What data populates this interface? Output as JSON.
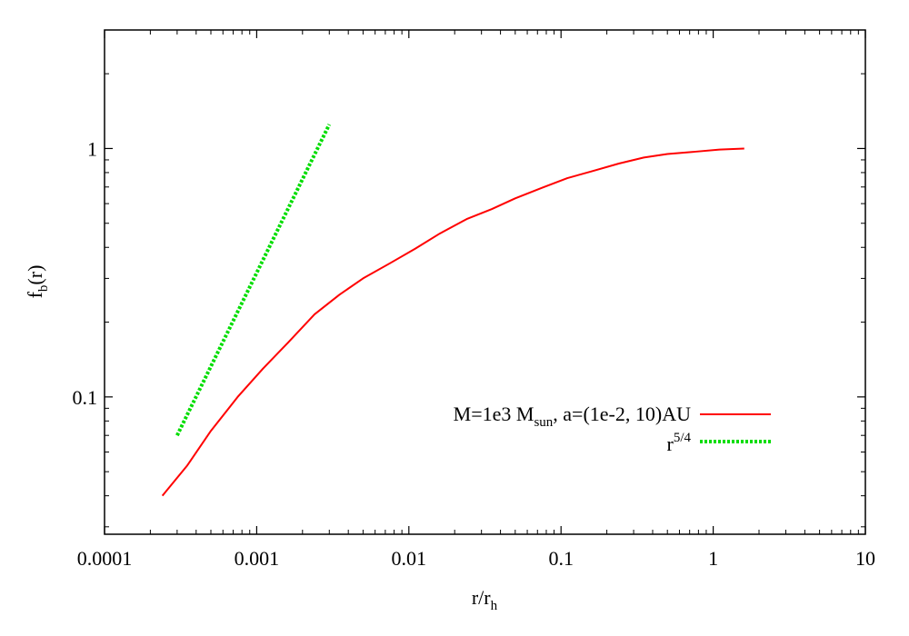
{
  "chart_data": {
    "type": "line",
    "xscale": "log",
    "yscale": "log",
    "xlim": [
      0.0001,
      10
    ],
    "ylim": [
      0.028,
      3
    ],
    "grid": false,
    "legend_position": "right",
    "xlabel": {
      "main": "r/r",
      "sub": "h"
    },
    "ylabel": {
      "main": "f",
      "sub": "b",
      "tail": "(r)"
    },
    "x_ticks": [
      {
        "value": 0.0001,
        "label": "0.0001"
      },
      {
        "value": 0.001,
        "label": "0.001"
      },
      {
        "value": 0.01,
        "label": "0.01"
      },
      {
        "value": 0.1,
        "label": "0.1"
      },
      {
        "value": 1,
        "label": "1"
      },
      {
        "value": 10,
        "label": "10"
      }
    ],
    "y_ticks": [
      {
        "value": 0.1,
        "label": "0.1"
      },
      {
        "value": 1,
        "label": "1"
      }
    ],
    "series": [
      {
        "legend": {
          "pre": "M=1e3 M",
          "sub": "sun",
          "post": ", a=(1e-2, 10)AU"
        },
        "color": "#ff0000",
        "dash": "solid",
        "points": [
          [
            0.00024,
            0.04
          ],
          [
            0.00035,
            0.053
          ],
          [
            0.0005,
            0.073
          ],
          [
            0.00075,
            0.1
          ],
          [
            0.0011,
            0.13
          ],
          [
            0.0016,
            0.165
          ],
          [
            0.0024,
            0.215
          ],
          [
            0.0035,
            0.258
          ],
          [
            0.005,
            0.3
          ],
          [
            0.0075,
            0.345
          ],
          [
            0.011,
            0.395
          ],
          [
            0.016,
            0.455
          ],
          [
            0.024,
            0.52
          ],
          [
            0.035,
            0.57
          ],
          [
            0.05,
            0.63
          ],
          [
            0.075,
            0.695
          ],
          [
            0.11,
            0.76
          ],
          [
            0.16,
            0.81
          ],
          [
            0.24,
            0.87
          ],
          [
            0.35,
            0.92
          ],
          [
            0.5,
            0.95
          ],
          [
            0.75,
            0.97
          ],
          [
            1.1,
            0.99
          ],
          [
            1.6,
            1.0
          ]
        ]
      },
      {
        "legend": {
          "pre": "r",
          "sup": "5/4"
        },
        "color": "#00dd00",
        "dash": "dotted",
        "points": [
          [
            0.0003,
            0.07
          ],
          [
            0.003,
            1.25
          ]
        ]
      }
    ]
  }
}
